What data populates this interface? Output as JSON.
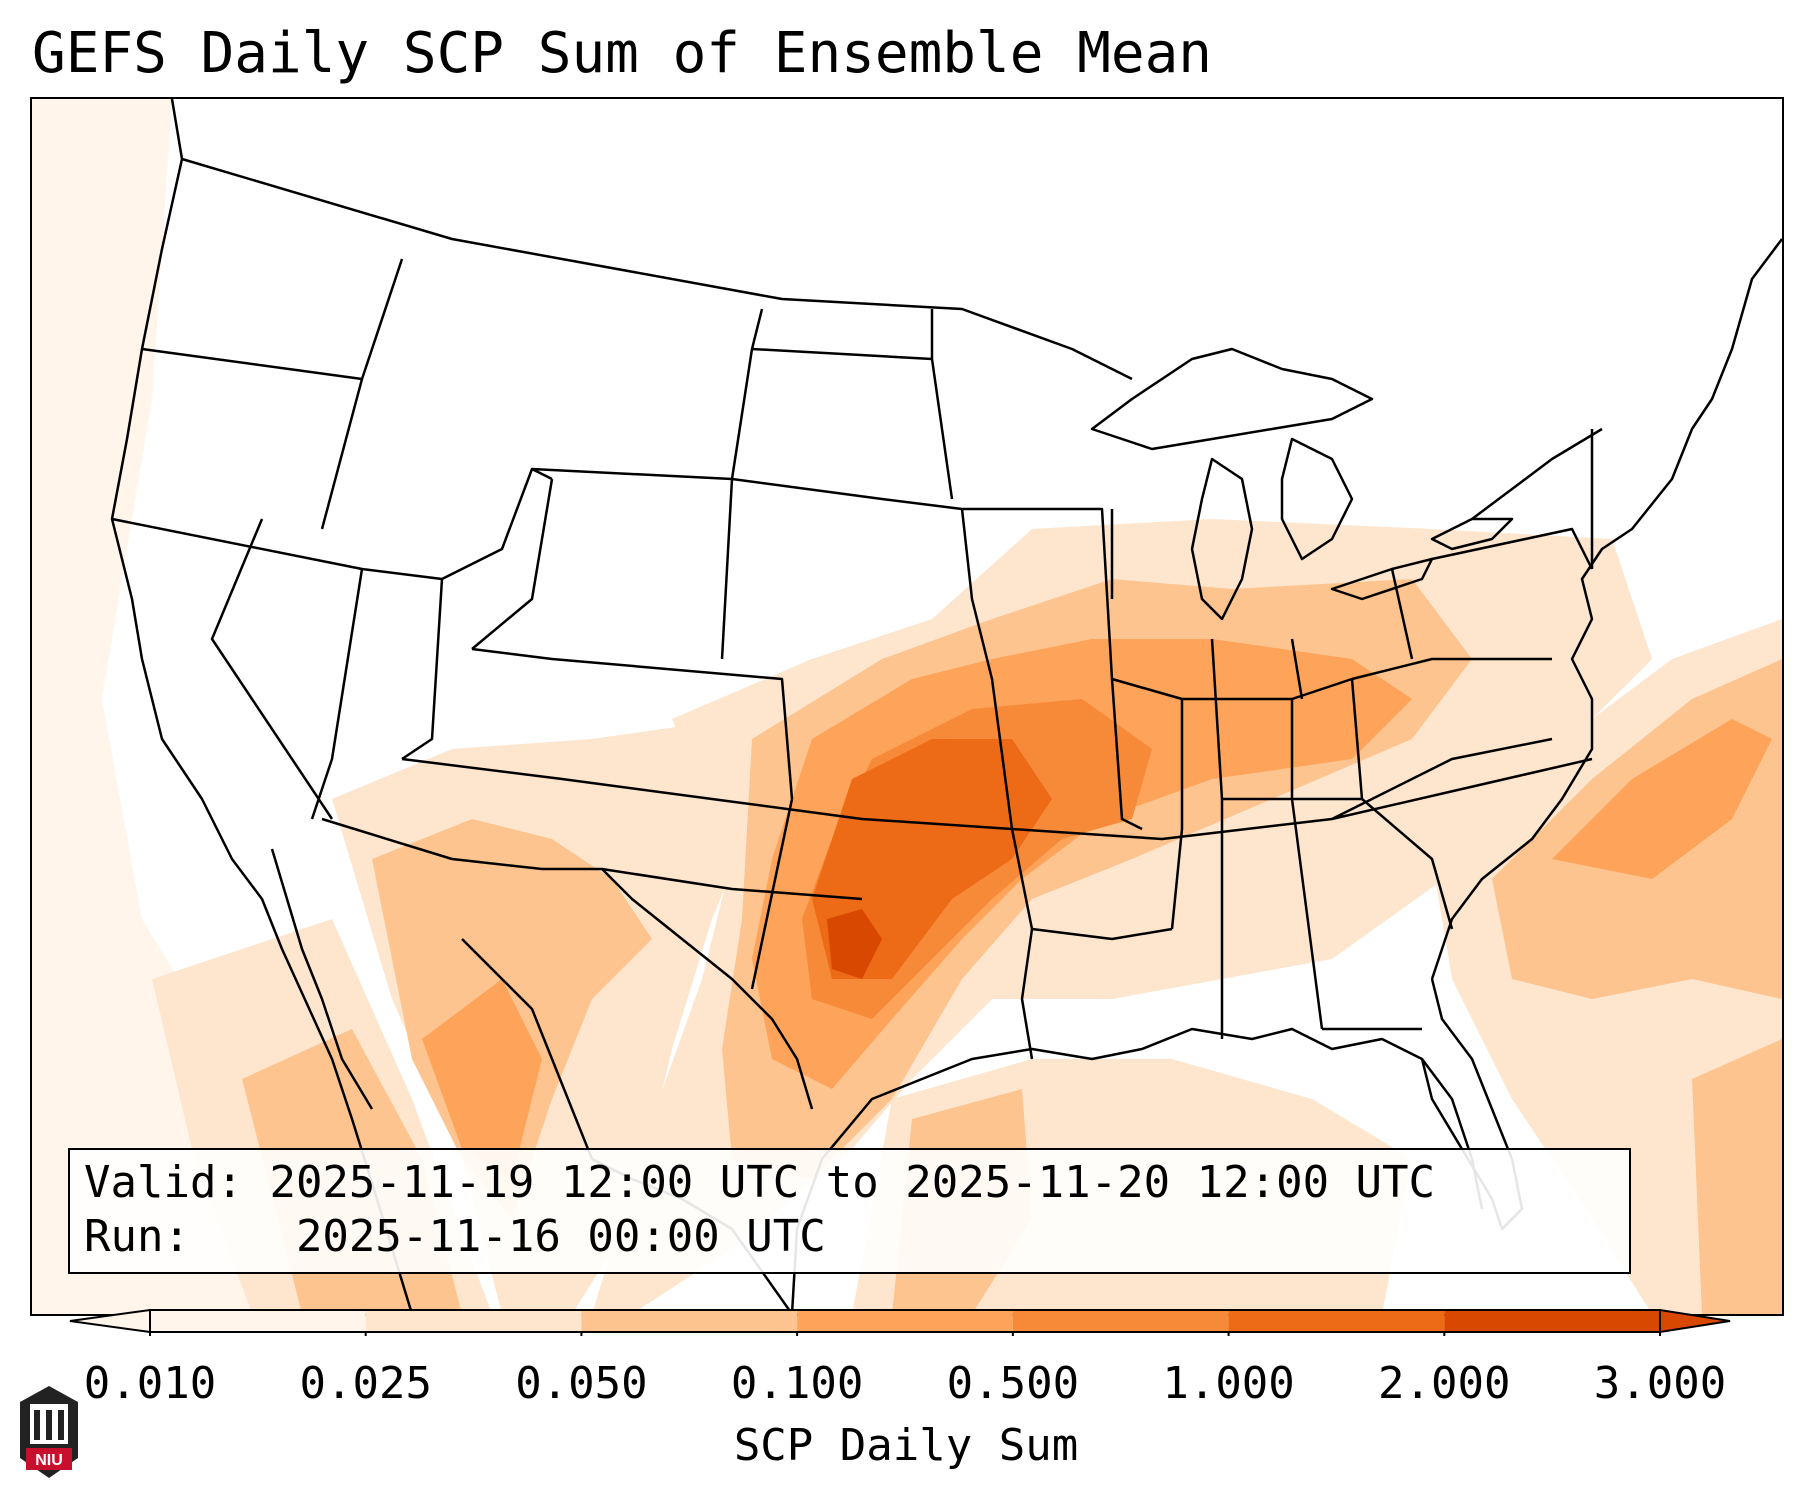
{
  "title": "GEFS Daily SCP Sum of Ensemble Mean",
  "info": {
    "valid_label": "Valid:",
    "valid_value": "2025-11-19 12:00 UTC to 2025-11-20 12:00 UTC",
    "run_label": "Run:",
    "run_value": "2025-11-16 00:00 UTC"
  },
  "colorbar": {
    "label": "SCP Daily Sum",
    "ticks": [
      "0.010",
      "0.025",
      "0.050",
      "0.100",
      "0.500",
      "1.000",
      "2.000",
      "3.000"
    ],
    "colors": [
      "#fff5eb",
      "#fee6ce",
      "#fdc48f",
      "#fda35a",
      "#f78a38",
      "#ed6a16",
      "#d94801"
    ],
    "extend": "both"
  },
  "logo": {
    "text": "NIU",
    "accent": "#c8102e"
  },
  "palette": {
    "shade_1": "#fff5eb",
    "shade_2": "#fee6ce",
    "shade_3": "#fdc48f",
    "shade_4": "#fda35a",
    "shade_5": "#f78a38",
    "shade_6": "#ed6a16",
    "shade_7": "#d94801"
  }
}
